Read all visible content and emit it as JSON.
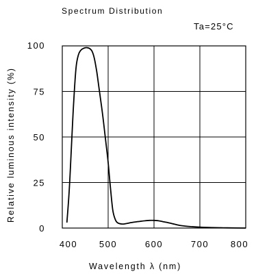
{
  "chart_data": {
    "type": "line",
    "title": "Spectrum Distribution",
    "condition": "Ta=25°C",
    "xlabel": "Wavelength  λ (nm)",
    "ylabel": "Relative luminous intensity (%)",
    "xlim": [
      400,
      800
    ],
    "ylim": [
      0,
      100
    ],
    "x_ticks": [
      400,
      500,
      600,
      700,
      800
    ],
    "y_ticks": [
      0,
      25,
      50,
      75,
      100
    ],
    "x_tick_labels": [
      "400",
      "500",
      "600",
      "700",
      "800"
    ],
    "y_tick_labels": [
      "0",
      "25",
      "50",
      "75",
      "100"
    ],
    "grid": true,
    "line_color": "#000000",
    "series": [
      {
        "x": [
          410,
          415,
          420,
          425,
          430,
          435,
          440,
          445,
          450,
          455,
          460,
          465,
          470,
          475,
          480,
          485,
          490,
          495,
          500,
          505,
          510,
          515,
          520,
          530,
          540,
          550,
          560,
          570,
          580,
          590,
          600,
          610,
          620,
          630,
          640,
          650,
          660,
          680,
          700,
          720,
          750,
          780,
          800
        ],
        "y": [
          3,
          20,
          45,
          70,
          88,
          95,
          97.5,
          98.5,
          99,
          99,
          98.5,
          97,
          93,
          86,
          77,
          68,
          58,
          47,
          36,
          22,
          10,
          5,
          3,
          2.2,
          2.5,
          3,
          3.4,
          3.7,
          4,
          4.2,
          4.2,
          4,
          3.5,
          3,
          2.4,
          1.8,
          1.3,
          0.8,
          0.5,
          0.3,
          0.15,
          0.05,
          0
        ]
      }
    ]
  }
}
